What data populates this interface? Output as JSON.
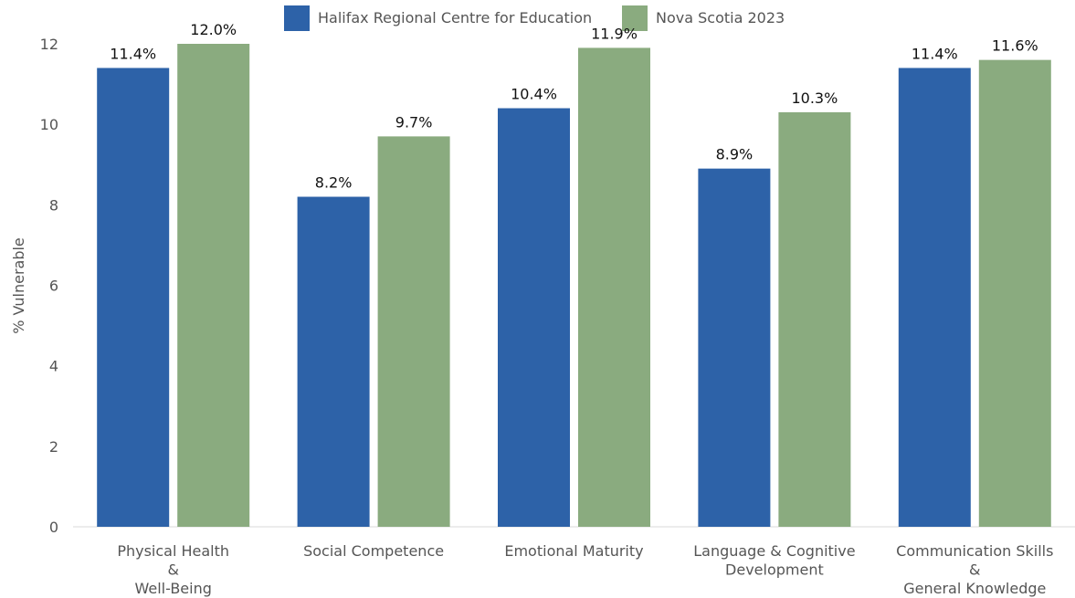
{
  "chart_data": {
    "type": "bar",
    "title": "",
    "xlabel": "",
    "ylabel": "% Vulnerable",
    "ylim": [
      0,
      12
    ],
    "yticks": [
      0,
      2,
      4,
      6,
      8,
      10,
      12
    ],
    "grid": false,
    "legend_position": "top-center",
    "categories": [
      [
        "Physical Health",
        "&",
        "Well-Being"
      ],
      [
        "Social Competence"
      ],
      [
        "Emotional Maturity"
      ],
      [
        "Language & Cognitive",
        "Development"
      ],
      [
        "Communication Skills",
        "&",
        "General Knowledge"
      ]
    ],
    "series": [
      {
        "name": "Halifax Regional Centre for Education",
        "color": "#2d62a8",
        "values": [
          11.4,
          8.2,
          10.4,
          8.9,
          11.4
        ],
        "labels": [
          "11.4%",
          "8.2%",
          "10.4%",
          "8.9%",
          "11.4%"
        ]
      },
      {
        "name": "Nova Scotia 2023",
        "color": "#8aab7f",
        "values": [
          12.0,
          9.7,
          11.9,
          10.3,
          11.6
        ],
        "labels": [
          "12.0%",
          "9.7%",
          "11.9%",
          "10.3%",
          "11.6%"
        ]
      }
    ]
  }
}
